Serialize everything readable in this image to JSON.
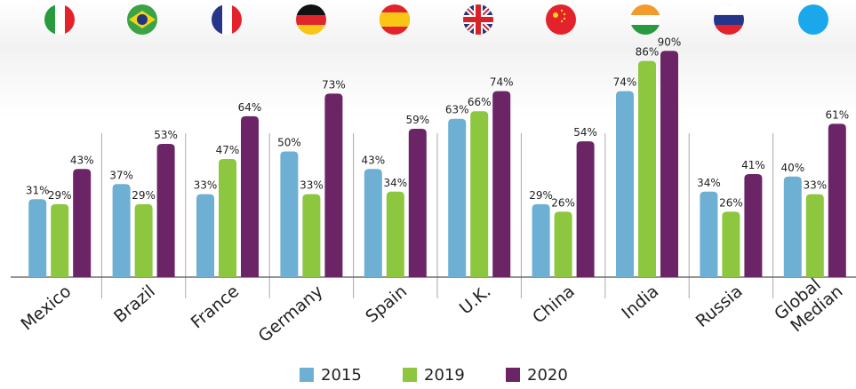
{
  "chart_data": {
    "type": "bar",
    "categories": [
      "Mexico",
      "Brazil",
      "France",
      "Germany",
      "Spain",
      "U.K.",
      "China",
      "India",
      "Russia",
      "Global Median"
    ],
    "series": [
      {
        "name": "2015",
        "color": "#6eafd4",
        "values": [
          31,
          37,
          33,
          50,
          43,
          63,
          29,
          74,
          34,
          40
        ],
        "value_labels": [
          "31%",
          "37%",
          "33%",
          "50%",
          "43%",
          "63%",
          "29%",
          "74%",
          "34%",
          "40%"
        ]
      },
      {
        "name": "2019",
        "color": "#8dc63f",
        "values": [
          29,
          29,
          47,
          33,
          34,
          66,
          26,
          86,
          26,
          33
        ],
        "value_labels": [
          "29%",
          "29%",
          "47%",
          "33%",
          "34%",
          "66%",
          "26%",
          "86%",
          "26%",
          "33%"
        ]
      },
      {
        "name": "2020",
        "color": "#6b2567",
        "values": [
          43,
          53,
          64,
          73,
          59,
          74,
          54,
          90,
          41,
          61
        ],
        "value_labels": [
          "43%",
          "53%",
          "64%",
          "73%",
          "59%",
          "74%",
          "54%",
          "90%",
          "41%",
          "61%"
        ]
      }
    ]
  }
}
